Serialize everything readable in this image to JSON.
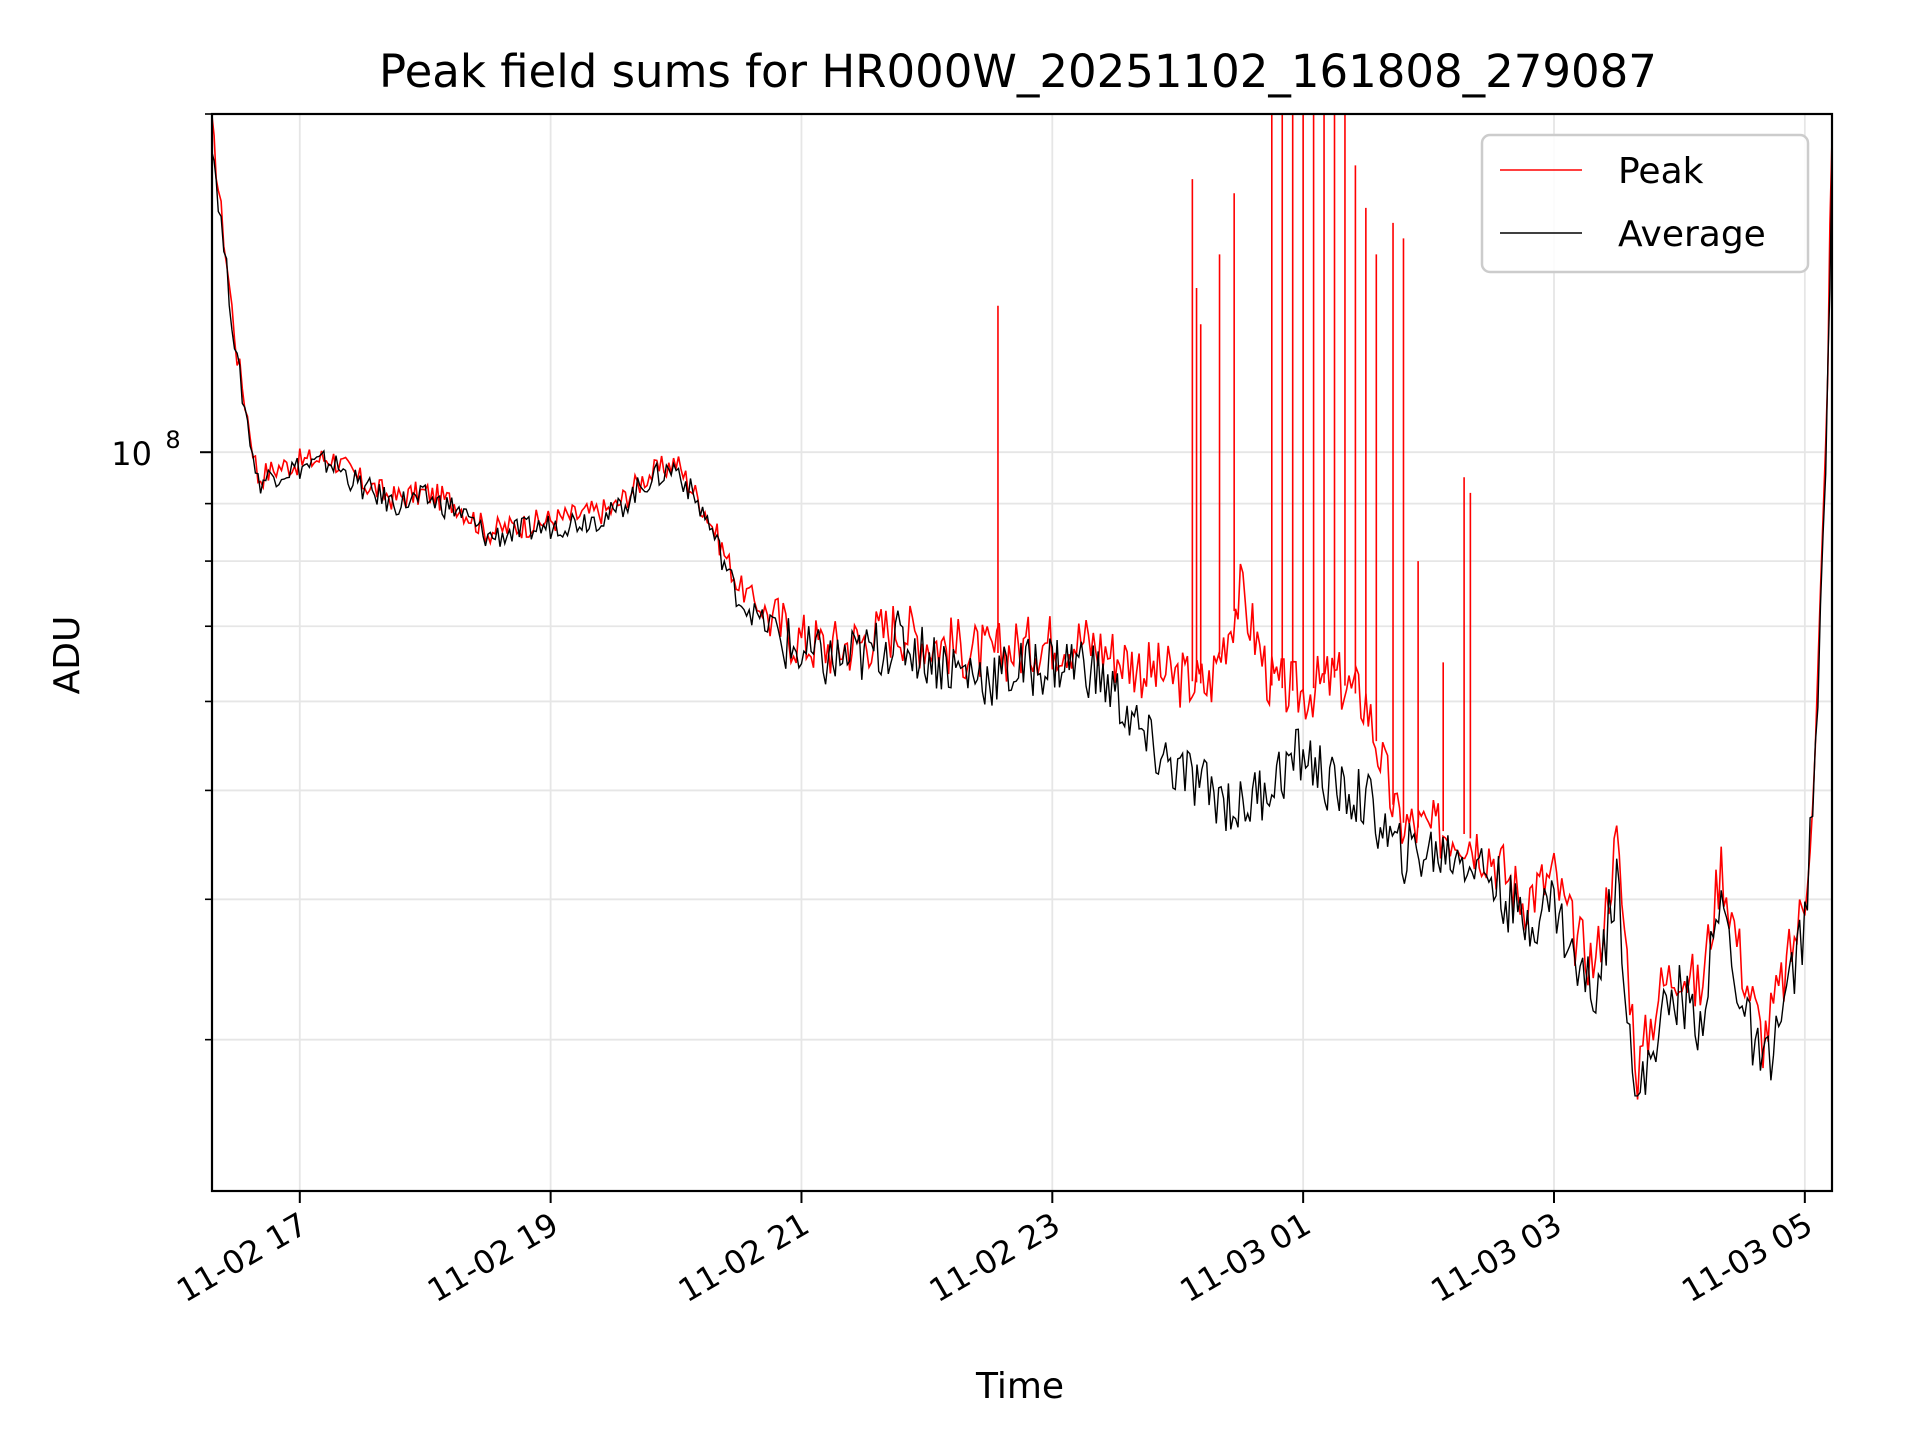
{
  "chart_data": {
    "type": "line",
    "title": "Peak field sums for HR000W_20251102_161808_279087",
    "xlabel": "Time",
    "ylabel": "ADU",
    "yscale": "log",
    "ylim": [
      22000000,
      200000000
    ],
    "xlim": [
      "11-02 16:18",
      "11-03 05:13"
    ],
    "xticks": [
      "11-02 17",
      "11-02 19",
      "11-02 21",
      "11-02 23",
      "11-03 01",
      "11-03 03",
      "11-03 05"
    ],
    "yticks_major": [
      {
        "value": 100000000,
        "label_base": "10",
        "label_exp": "8"
      }
    ],
    "yticks_minor": [
      30000000,
      40000000,
      50000000,
      60000000,
      70000000,
      80000000,
      90000000,
      200000000
    ],
    "grid": true,
    "legend_placement": "top-right",
    "x": [
      "11-02 16:18",
      "11-02 16:21",
      "11-02 16:25",
      "11-02 16:30",
      "11-02 16:40",
      "11-02 16:50",
      "11-02 17:00",
      "11-02 17:15",
      "11-02 17:30",
      "11-02 17:45",
      "11-02 18:00",
      "11-02 18:15",
      "11-02 18:30",
      "11-02 18:45",
      "11-02 19:00",
      "11-02 19:15",
      "11-02 19:30",
      "11-02 19:45",
      "11-02 20:00",
      "11-02 20:15",
      "11-02 20:30",
      "11-02 20:40",
      "11-02 20:50",
      "11-02 21:00",
      "11-02 21:15",
      "11-02 21:30",
      "11-02 21:45",
      "11-02 22:00",
      "11-02 22:15",
      "11-02 22:30",
      "11-02 22:45",
      "11-02 23:00",
      "11-02 23:15",
      "11-02 23:30",
      "11-02 23:45",
      "11-03 00:00",
      "11-03 00:15",
      "11-03 00:30",
      "11-03 00:45",
      "11-03 01:00",
      "11-03 01:15",
      "11-03 01:30",
      "11-03 01:45",
      "11-03 02:00",
      "11-03 02:15",
      "11-03 02:30",
      "11-03 02:45",
      "11-03 03:00",
      "11-03 03:10",
      "11-03 03:20",
      "11-03 03:30",
      "11-03 03:40",
      "11-03 03:50",
      "11-03 04:00",
      "11-03 04:10",
      "11-03 04:20",
      "11-03 04:30",
      "11-03 04:40",
      "11-03 04:50",
      "11-03 05:00",
      "11-03 05:05",
      "11-03 05:10",
      "11-03 05:13"
    ],
    "series": [
      {
        "name": "Peak",
        "color": "#ff0000",
        "values": [
          195000000,
          172000000,
          148000000,
          122000000,
          95000000,
          97000000,
          98000000,
          99000000,
          94000000,
          91000000,
          92000000,
          90000000,
          85000000,
          86000000,
          87000000,
          88000000,
          89000000,
          95000000,
          98000000,
          88000000,
          76000000,
          73000000,
          70000000,
          68000000,
          67000000,
          68000000,
          70000000,
          68000000,
          67000000,
          66000000,
          67000000,
          68000000,
          68000000,
          66000000,
          64000000,
          63000000,
          62000000,
          75000000,
          62000000,
          61000000,
          63000000,
          60000000,
          47000000,
          46000000,
          46000000,
          44000000,
          40000000,
          42000000,
          37000000,
          35000000,
          45000000,
          28000000,
          33000000,
          35000000,
          33000000,
          43000000,
          35000000,
          30000000,
          34000000,
          40000000,
          54000000,
          100000000,
          190000000
        ]
      },
      {
        "name": "Average",
        "color": "#000000",
        "values": [
          190000000,
          168000000,
          145000000,
          120000000,
          94000000,
          96000000,
          97000000,
          98000000,
          93000000,
          90000000,
          91000000,
          89000000,
          84000000,
          85000000,
          86000000,
          87000000,
          88000000,
          94000000,
          97000000,
          87000000,
          74000000,
          71000000,
          68000000,
          66000000,
          65000000,
          66000000,
          68000000,
          66000000,
          64000000,
          63000000,
          64000000,
          65000000,
          65000000,
          61000000,
          55000000,
          52000000,
          50000000,
          48000000,
          51000000,
          54000000,
          50000000,
          49000000,
          44000000,
          44000000,
          44000000,
          42000000,
          38000000,
          40000000,
          35000000,
          33000000,
          42000000,
          26000000,
          31000000,
          33000000,
          31000000,
          40000000,
          32000000,
          28000000,
          32000000,
          38000000,
          52000000,
          95000000,
          185000000
        ]
      }
    ],
    "peak_spikes": [
      {
        "x": "11-02 22:34",
        "y": 135000000
      },
      {
        "x": "11-03 00:07",
        "y": 175000000
      },
      {
        "x": "11-03 00:09",
        "y": 140000000
      },
      {
        "x": "11-03 00:11",
        "y": 130000000
      },
      {
        "x": "11-03 00:20",
        "y": 150000000
      },
      {
        "x": "11-03 00:27",
        "y": 170000000
      },
      {
        "x": "11-03 00:45",
        "y": 200000000
      },
      {
        "x": "11-03 00:50",
        "y": 200000000
      },
      {
        "x": "11-03 00:55",
        "y": 200000000
      },
      {
        "x": "11-03 01:00",
        "y": 200000000
      },
      {
        "x": "11-03 01:05",
        "y": 200000000
      },
      {
        "x": "11-03 01:10",
        "y": 200000000
      },
      {
        "x": "11-03 01:15",
        "y": 200000000
      },
      {
        "x": "11-03 01:20",
        "y": 200000000
      },
      {
        "x": "11-03 01:25",
        "y": 180000000
      },
      {
        "x": "11-03 01:30",
        "y": 165000000
      },
      {
        "x": "11-03 01:35",
        "y": 150000000
      },
      {
        "x": "11-03 01:43",
        "y": 160000000
      },
      {
        "x": "11-03 01:48",
        "y": 155000000
      },
      {
        "x": "11-03 01:55",
        "y": 80000000
      },
      {
        "x": "11-03 02:07",
        "y": 65000000
      },
      {
        "x": "11-03 02:17",
        "y": 95000000
      },
      {
        "x": "11-03 02:20",
        "y": 92000000
      }
    ]
  },
  "legend": {
    "peak_label": "Peak",
    "average_label": "Average"
  }
}
